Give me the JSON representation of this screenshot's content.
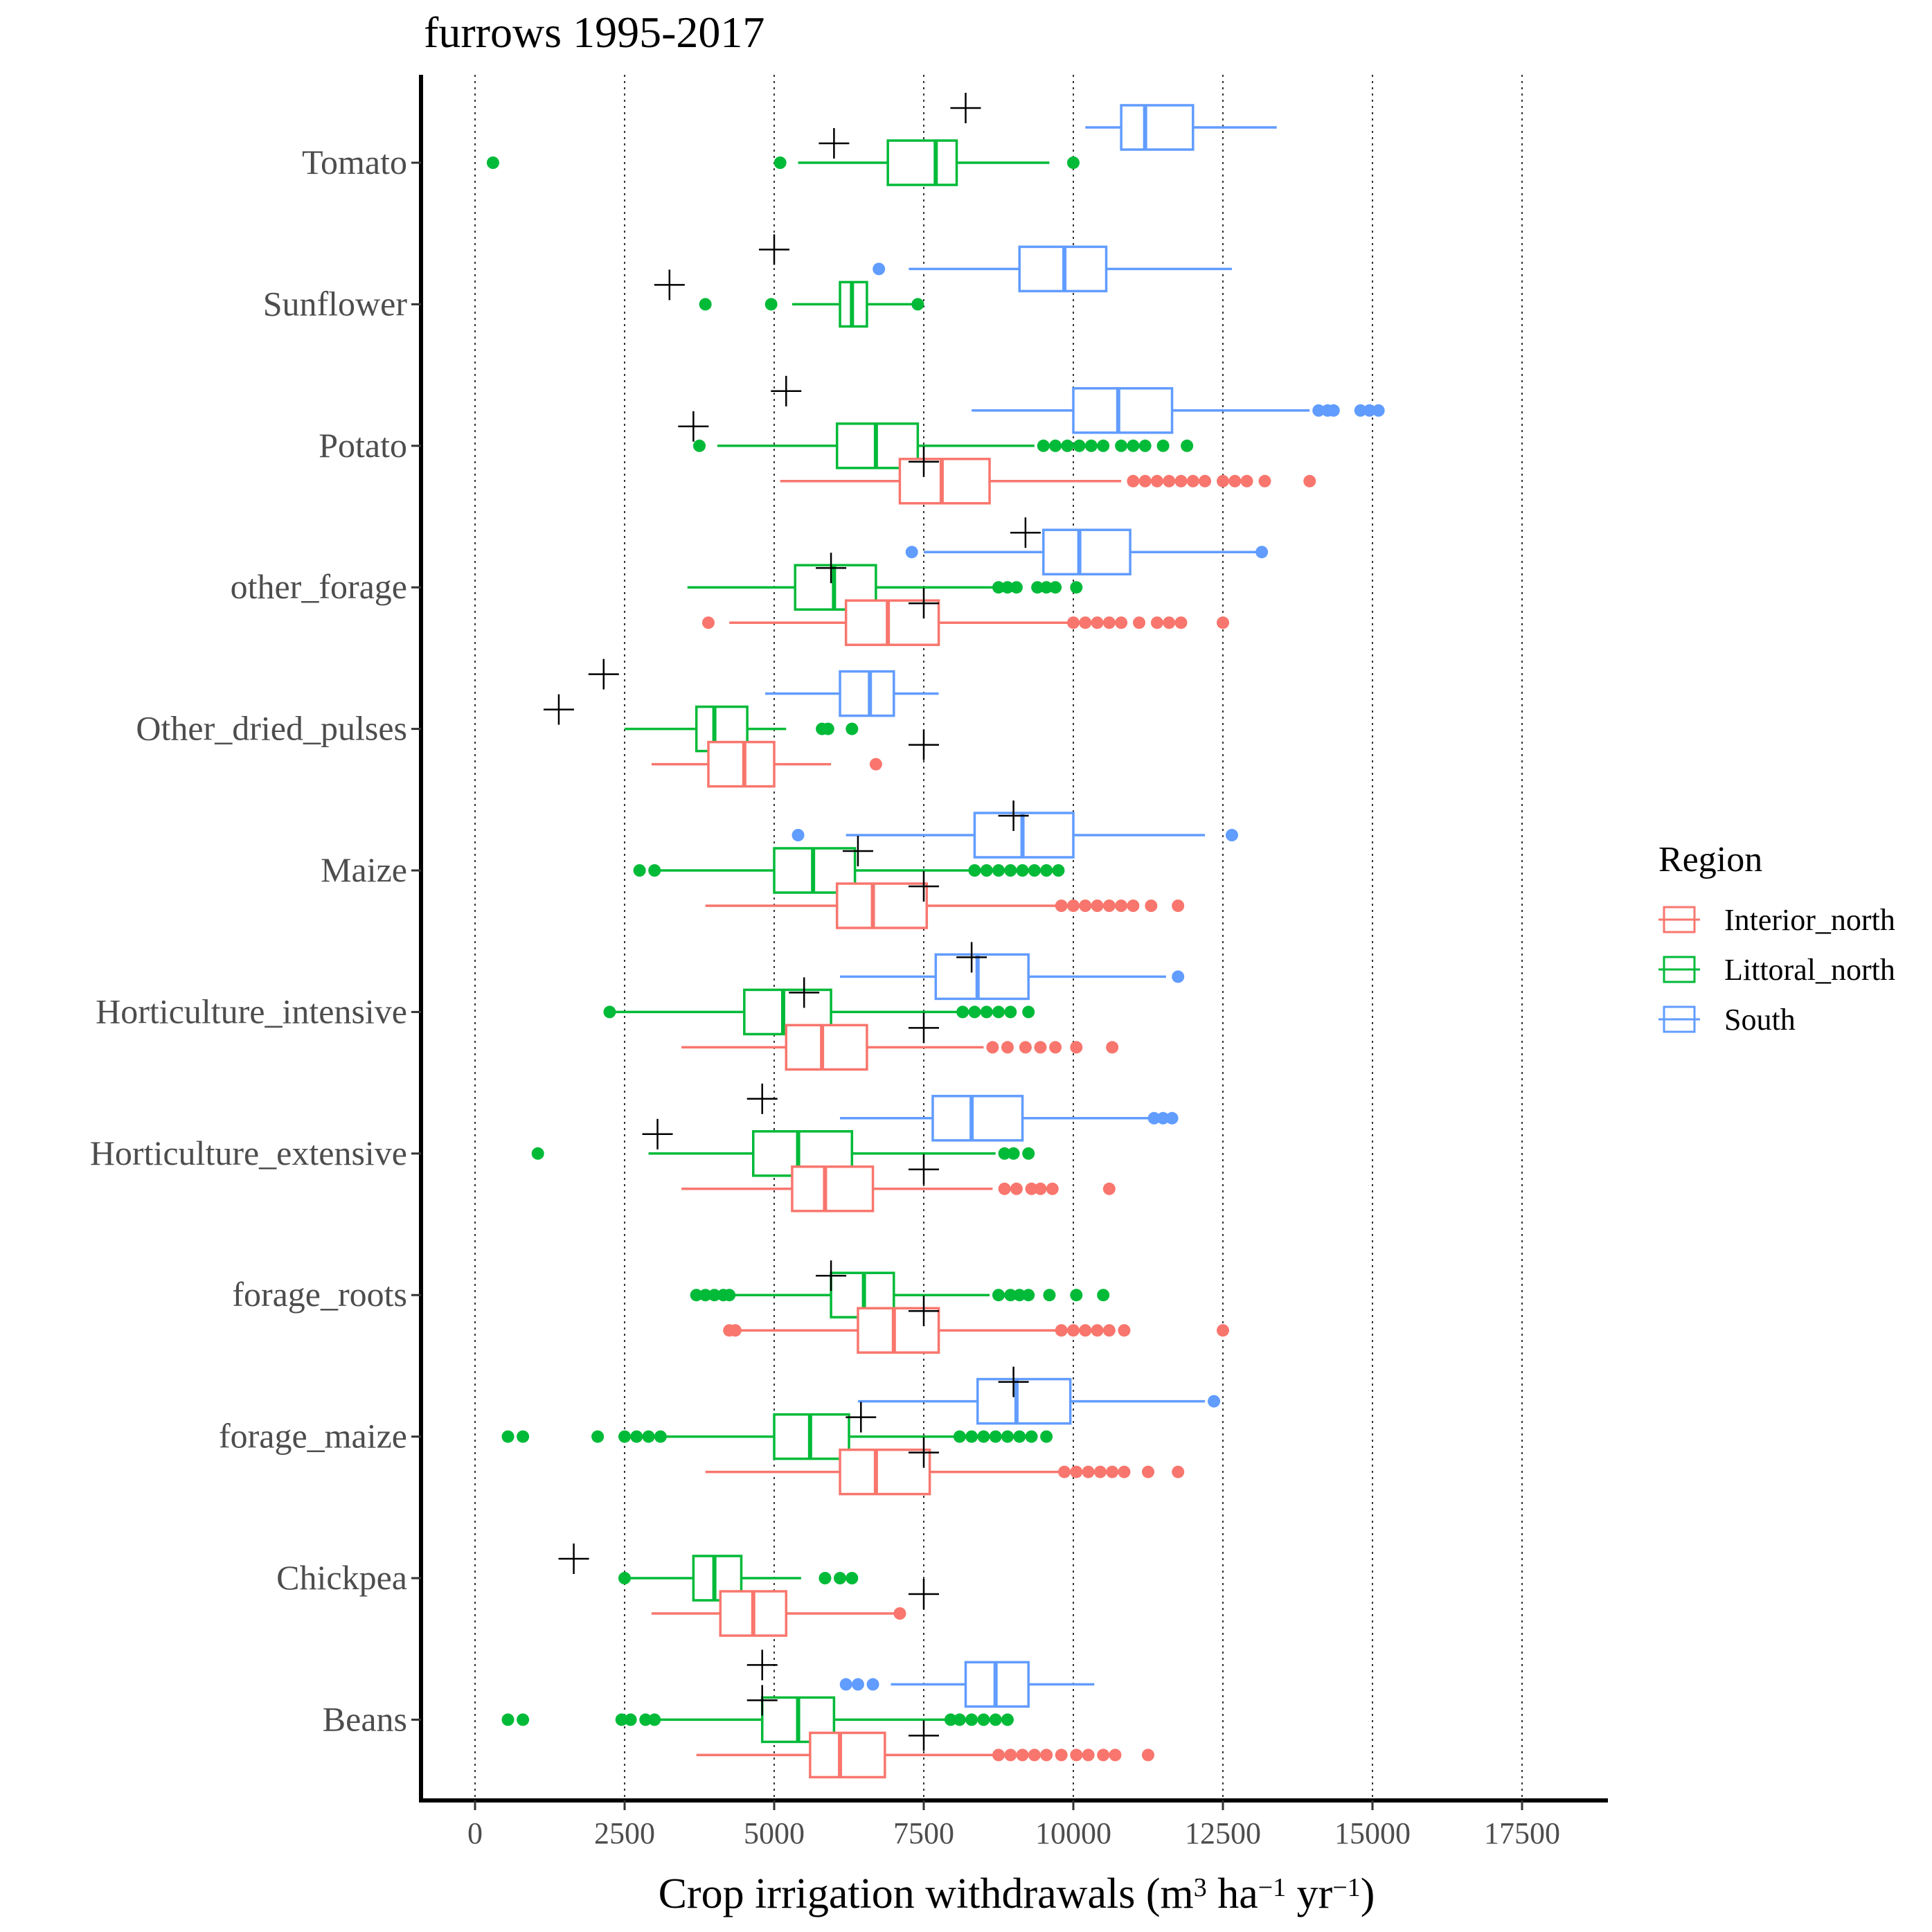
{
  "chart_data": {
    "type": "boxplot",
    "orientation": "horizontal",
    "title": "furrows 1995-2017",
    "xlabel": "Crop irrigation withdrawals (m",
    "xlabel_unit_a": " ha",
    "xlabel_unit_b": " yr",
    "xlabel_sup_1": "3",
    "xlabel_sup_2": "−1",
    "xlabel_sup_3": "−1",
    "xlabel_close": ")",
    "xlim": [
      -900,
      18900
    ],
    "x_ticks": [
      0,
      2500,
      5000,
      7500,
      10000,
      12500,
      15000,
      17500
    ],
    "x_tick_labels": [
      "0",
      "2500",
      "5000",
      "7500",
      "10000",
      "12500",
      "15000",
      "17500"
    ],
    "grid": "vertical dotted",
    "legend": {
      "title": "Region",
      "position": "right",
      "entries": [
        {
          "key": "interior",
          "label": "Interior_north"
        },
        {
          "key": "littoral",
          "label": "Littoral_north"
        },
        {
          "key": "south",
          "label": "South"
        }
      ]
    },
    "colors": {
      "interior": "#F8766D",
      "littoral": "#00BA38",
      "south": "#619CFF",
      "reference_mark": "#000000"
    },
    "categories": [
      "Tomato",
      "Sunflower",
      "Potato",
      "other_forage",
      "Other_dried_pulses",
      "Maize",
      "Horticulture_intensive",
      "Horticulture_extensive",
      "forage_roots",
      "forage_maize",
      "Chickpea",
      "Beans"
    ],
    "boxes": [
      {
        "category": "Tomato",
        "series": "south",
        "q1": 10800,
        "median": 11200,
        "q3": 12000,
        "whisker_low": 10200,
        "whisker_high": 13400,
        "outliers": [],
        "reference": 8200
      },
      {
        "category": "Tomato",
        "series": "littoral",
        "q1": 6900,
        "median": 7700,
        "q3": 8050,
        "whisker_low": 5400,
        "whisker_high": 9600,
        "outliers": [
          300,
          5100,
          10000
        ],
        "reference": 6000
      },
      {
        "category": "Sunflower",
        "series": "south",
        "q1": 9100,
        "median": 9850,
        "q3": 10550,
        "whisker_low": 7250,
        "whisker_high": 12650,
        "outliers": [
          6750
        ],
        "reference": 5000
      },
      {
        "category": "Sunflower",
        "series": "littoral",
        "q1": 6100,
        "median": 6300,
        "q3": 6550,
        "whisker_low": 5300,
        "whisker_high": 7350,
        "outliers": [
          3850,
          4950,
          7400
        ],
        "reference": 3250
      },
      {
        "category": "Potato",
        "series": "south",
        "q1": 10000,
        "median": 10750,
        "q3": 11650,
        "whisker_low": 8300,
        "whisker_high": 13950,
        "outliers": [
          14100,
          14250,
          14350,
          14800,
          14950,
          15100
        ],
        "reference": 5200
      },
      {
        "category": "Potato",
        "series": "littoral",
        "q1": 6050,
        "median": 6700,
        "q3": 7400,
        "whisker_low": 4050,
        "whisker_high": 9350,
        "outliers": [
          3750,
          9500,
          9700,
          9900,
          10100,
          10300,
          10500,
          10800,
          11000,
          11200,
          11500,
          11900
        ],
        "reference": 3650
      },
      {
        "category": "Potato",
        "series": "interior",
        "q1": 7100,
        "median": 7800,
        "q3": 8600,
        "whisker_low": 5100,
        "whisker_high": 10800,
        "outliers": [
          11000,
          11200,
          11400,
          11600,
          11800,
          12000,
          12200,
          12500,
          12700,
          12900,
          13200,
          13950
        ],
        "reference": 7500
      },
      {
        "category": "other_forage",
        "series": "south",
        "q1": 9500,
        "median": 10100,
        "q3": 10950,
        "whisker_low": 7500,
        "whisker_high": 13150,
        "outliers": [
          7300,
          13150
        ],
        "reference": 9200
      },
      {
        "category": "other_forage",
        "series": "littoral",
        "q1": 5350,
        "median": 6000,
        "q3": 6700,
        "whisker_low": 3550,
        "whisker_high": 8650,
        "outliers": [
          8750,
          8900,
          9050,
          9400,
          9550,
          9700,
          10050
        ],
        "reference": 5950
      },
      {
        "category": "other_forage",
        "series": "interior",
        "q1": 6200,
        "median": 6900,
        "q3": 7750,
        "whisker_low": 4250,
        "whisker_high": 9950,
        "outliers": [
          3900,
          10000,
          10200,
          10400,
          10600,
          10800,
          11100,
          11400,
          11600,
          11800,
          12500
        ],
        "reference": 7500
      },
      {
        "category": "Other_dried_pulses",
        "series": "south",
        "q1": 6100,
        "median": 6600,
        "q3": 7000,
        "whisker_low": 4850,
        "whisker_high": 7750,
        "outliers": [],
        "reference": 2150
      },
      {
        "category": "Other_dried_pulses",
        "series": "littoral",
        "q1": 3700,
        "median": 4000,
        "q3": 4550,
        "whisker_low": 2500,
        "whisker_high": 5200,
        "outliers": [
          5800,
          5900,
          6300
        ],
        "reference": 1400
      },
      {
        "category": "Other_dried_pulses",
        "series": "interior",
        "q1": 3900,
        "median": 4500,
        "q3": 5000,
        "whisker_low": 2950,
        "whisker_high": 5950,
        "outliers": [
          6700
        ],
        "reference": 7500
      },
      {
        "category": "Maize",
        "series": "south",
        "q1": 8350,
        "median": 9150,
        "q3": 10000,
        "whisker_low": 6200,
        "whisker_high": 12200,
        "outliers": [
          5400,
          12650
        ],
        "reference": 9000
      },
      {
        "category": "Maize",
        "series": "littoral",
        "q1": 5000,
        "median": 5650,
        "q3": 6350,
        "whisker_low": 3100,
        "whisker_high": 8250,
        "outliers": [
          2750,
          3000,
          8350,
          8550,
          8750,
          8950,
          9150,
          9350,
          9550,
          9750
        ],
        "reference": 6400
      },
      {
        "category": "Maize",
        "series": "interior",
        "q1": 6050,
        "median": 6650,
        "q3": 7550,
        "whisker_low": 3850,
        "whisker_high": 9700,
        "outliers": [
          9800,
          10000,
          10200,
          10400,
          10600,
          10800,
          11000,
          11300,
          11750
        ],
        "reference": 7500
      },
      {
        "category": "Horticulture_intensive",
        "series": "south",
        "q1": 7700,
        "median": 8400,
        "q3": 9250,
        "whisker_low": 6100,
        "whisker_high": 11550,
        "outliers": [
          11750
        ],
        "reference": 8300
      },
      {
        "category": "Horticulture_intensive",
        "series": "littoral",
        "q1": 4500,
        "median": 5150,
        "q3": 5950,
        "whisker_low": 2300,
        "whisker_high": 8050,
        "outliers": [
          2250,
          8150,
          8350,
          8550,
          8750,
          8950,
          9250
        ],
        "reference": 5500
      },
      {
        "category": "Horticulture_intensive",
        "series": "interior",
        "q1": 5200,
        "median": 5800,
        "q3": 6550,
        "whisker_low": 3450,
        "whisker_high": 8500,
        "outliers": [
          8650,
          8900,
          9200,
          9450,
          9700,
          10050,
          10650
        ],
        "reference": 7500
      },
      {
        "category": "Horticulture_extensive",
        "series": "south",
        "q1": 7650,
        "median": 8300,
        "q3": 9150,
        "whisker_low": 6100,
        "whisker_high": 11250,
        "outliers": [
          11350,
          11500,
          11650
        ],
        "reference": 4800
      },
      {
        "category": "Horticulture_extensive",
        "series": "littoral",
        "q1": 4650,
        "median": 5400,
        "q3": 6300,
        "whisker_low": 2900,
        "whisker_high": 8700,
        "outliers": [
          1050,
          8850,
          9000,
          9250
        ],
        "reference": 3050
      },
      {
        "category": "Horticulture_extensive",
        "series": "interior",
        "q1": 5300,
        "median": 5850,
        "q3": 6650,
        "whisker_low": 3450,
        "whisker_high": 8650,
        "outliers": [
          8850,
          9050,
          9300,
          9450,
          9650,
          10600
        ],
        "reference": 7500
      },
      {
        "category": "forage_roots",
        "series": "littoral",
        "q1": 5950,
        "median": 6500,
        "q3": 7000,
        "whisker_low": 4300,
        "whisker_high": 8600,
        "outliers": [
          3700,
          3850,
          4000,
          4150,
          4250,
          8750,
          8950,
          9100,
          9250,
          9600,
          10050,
          10500
        ],
        "reference": 5950
      },
      {
        "category": "forage_roots",
        "series": "interior",
        "q1": 6400,
        "median": 7000,
        "q3": 7750,
        "whisker_low": 4400,
        "whisker_high": 9700,
        "outliers": [
          4250,
          4350,
          9800,
          10000,
          10200,
          10400,
          10600,
          10850,
          12500
        ],
        "reference": 7500
      },
      {
        "category": "forage_maize",
        "series": "south",
        "q1": 8400,
        "median": 9050,
        "q3": 9950,
        "whisker_low": 6400,
        "whisker_high": 12200,
        "outliers": [
          12350
        ],
        "reference": 9000
      },
      {
        "category": "forage_maize",
        "series": "littoral",
        "q1": 5000,
        "median": 5600,
        "q3": 6250,
        "whisker_low": 3150,
        "whisker_high": 8000,
        "outliers": [
          550,
          800,
          2050,
          2500,
          2700,
          2900,
          3100,
          8100,
          8300,
          8500,
          8700,
          8900,
          9100,
          9300,
          9550
        ],
        "reference": 6450
      },
      {
        "category": "forage_maize",
        "series": "interior",
        "q1": 6100,
        "median": 6700,
        "q3": 7600,
        "whisker_low": 3850,
        "whisker_high": 9750,
        "outliers": [
          9850,
          10050,
          10250,
          10450,
          10650,
          10850,
          11250,
          11750
        ],
        "reference": 7500
      },
      {
        "category": "Chickpea",
        "series": "littoral",
        "q1": 3650,
        "median": 4000,
        "q3": 4450,
        "whisker_low": 2550,
        "whisker_high": 5450,
        "outliers": [
          2500,
          5850,
          6100,
          6300
        ],
        "reference": 1650
      },
      {
        "category": "Chickpea",
        "series": "interior",
        "q1": 4100,
        "median": 4650,
        "q3": 5200,
        "whisker_low": 2950,
        "whisker_high": 7050,
        "outliers": [
          7100
        ],
        "reference": 7500
      },
      {
        "category": "Beans",
        "series": "south",
        "q1": 8200,
        "median": 8700,
        "q3": 9250,
        "whisker_low": 6950,
        "whisker_high": 10350,
        "outliers": [
          6200,
          6400,
          6650
        ],
        "reference": 4800
      },
      {
        "category": "Beans",
        "series": "littoral",
        "q1": 4800,
        "median": 5400,
        "q3": 6000,
        "whisker_low": 3100,
        "whisker_high": 7850,
        "outliers": [
          550,
          800,
          2450,
          2600,
          2850,
          3000,
          7950,
          8100,
          8300,
          8500,
          8700,
          8900
        ],
        "reference": 4800
      },
      {
        "category": "Beans",
        "series": "interior",
        "q1": 5600,
        "median": 6100,
        "q3": 6850,
        "whisker_low": 3700,
        "whisker_high": 8650,
        "outliers": [
          8750,
          8950,
          9150,
          9350,
          9550,
          9800,
          10050,
          10250,
          10500,
          10700,
          11250
        ],
        "reference": 7500
      }
    ]
  }
}
